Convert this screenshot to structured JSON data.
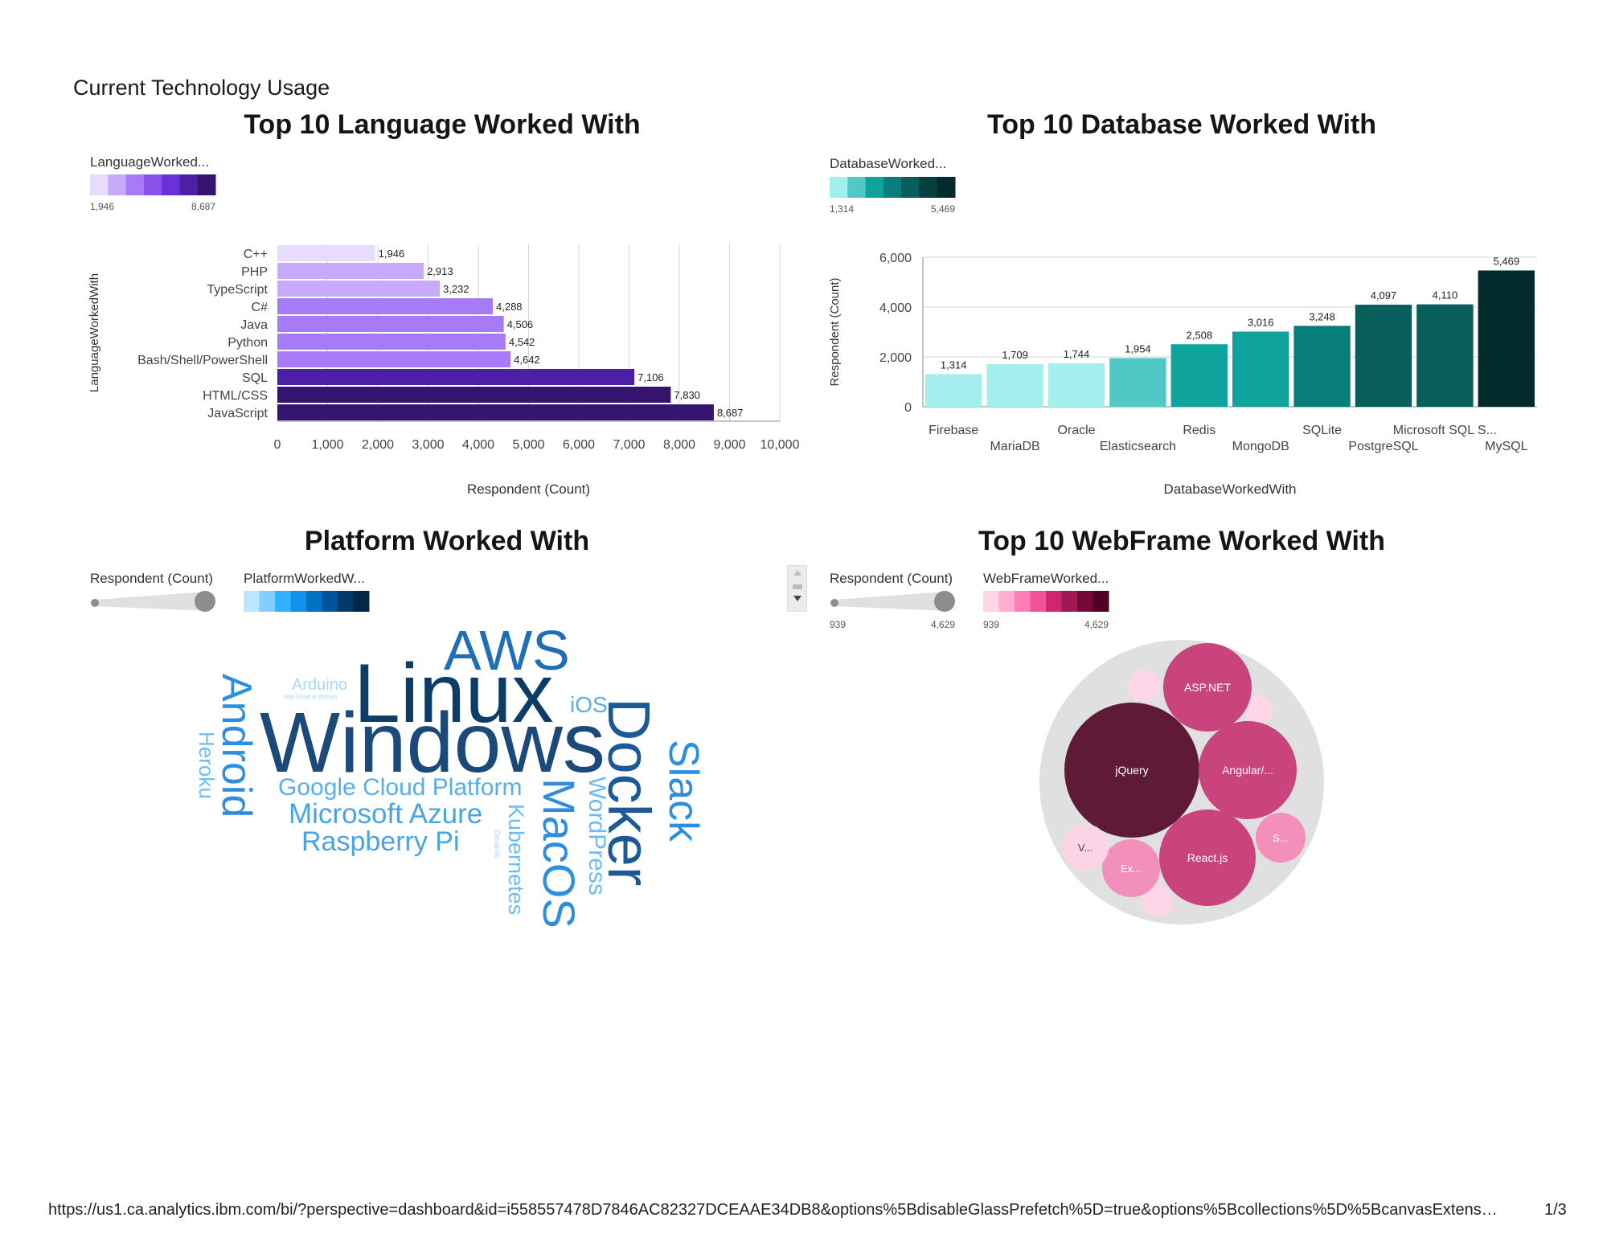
{
  "page": {
    "title": "Current Technology Usage",
    "url": "https://us1.ca.analytics.ibm.com/bi/?perspective=dashboard&id=i558557478D7846AC82327DCEAAE34DB8&options%5BdisableGlassPrefetch%5D=true&options%5Bcollections%5D%5BcanvasExtens…",
    "page_number": "1/3"
  },
  "colors": {
    "purple_scale": [
      "#e7dcfd",
      "#c7aafb",
      "#a77af7",
      "#8a52ec",
      "#6b31d6",
      "#4d1fa6",
      "#35146f"
    ],
    "teal_scale": [
      "#a4eeee",
      "#50c8c5",
      "#0ea39d",
      "#087e7a",
      "#075e5b",
      "#06403e",
      "#032b2c"
    ],
    "blue_scale": [
      "#bae6ff",
      "#82cfff",
      "#33b1ff",
      "#1192e8",
      "#0072c3",
      "#00539a",
      "#003a6d",
      "#012749"
    ],
    "pink_scale": [
      "#ffd6e8",
      "#ffafd2",
      "#ff7eb6",
      "#ee5396",
      "#d02670",
      "#9f1853",
      "#740937",
      "#510224"
    ]
  },
  "chart_data": [
    {
      "type": "bar",
      "orientation": "horizontal",
      "title": "Top 10 Language Worked With",
      "legend_title": "LanguageWorked...",
      "legend_min": "1,946",
      "legend_max": "8,687",
      "xlabel": "Respondent (Count)",
      "ylabel": "LanguageWorkedWith",
      "xlim": [
        0,
        10000
      ],
      "xticks": [
        "0",
        "1,000",
        "2,000",
        "3,000",
        "4,000",
        "5,000",
        "6,000",
        "7,000",
        "8,000",
        "9,000",
        "10,000"
      ],
      "categories": [
        "C++",
        "PHP",
        "TypeScript",
        "C#",
        "Java",
        "Python",
        "Bash/Shell/PowerShell",
        "SQL",
        "HTML/CSS",
        "JavaScript"
      ],
      "values": [
        1946,
        2913,
        3232,
        4288,
        4506,
        4542,
        4642,
        7106,
        7830,
        8687
      ],
      "value_labels": [
        "1,946",
        "2,913",
        "3,232",
        "4,288",
        "4,506",
        "4,542",
        "4,642",
        "7,106",
        "7,830",
        "8,687"
      ]
    },
    {
      "type": "bar",
      "orientation": "vertical",
      "title": "Top 10 Database Worked With",
      "legend_title": "DatabaseWorked...",
      "legend_min": "1,314",
      "legend_max": "5,469",
      "xlabel": "DatabaseWorkedWith",
      "ylabel": "Respondent (Count)",
      "ylim": [
        0,
        6000
      ],
      "yticks": [
        "0",
        "2,000",
        "4,000",
        "6,000"
      ],
      "categories": [
        "Firebase",
        "MariaDB",
        "Oracle",
        "Elasticsearch",
        "Redis",
        "MongoDB",
        "SQLite",
        "PostgreSQL",
        "Microsoft SQL S...",
        "MySQL"
      ],
      "values": [
        1314,
        1709,
        1744,
        1954,
        2508,
        3016,
        3248,
        4097,
        4110,
        5469
      ],
      "value_labels": [
        "1,314",
        "1,709",
        "1,744",
        "1,954",
        "2,508",
        "3,016",
        "3,248",
        "4,097",
        "4,110",
        "5,469"
      ]
    },
    {
      "type": "wordcloud",
      "title": "Platform Worked With",
      "size_legend_title": "Respondent (Count)",
      "color_legend_title": "PlatformWorkedW...",
      "words": [
        "Windows",
        "Linux",
        "Docker",
        "AWS",
        "Android",
        "MacOS",
        "Slack",
        "Microsoft Azure",
        "Google Cloud Platform",
        "Raspberry Pi",
        "Kubernetes",
        "WordPress",
        "Heroku",
        "iOS",
        "Arduino",
        "IBM Cloud or Watson",
        "Omarsk"
      ]
    },
    {
      "type": "bubble",
      "title": "Top 10 WebFrame Worked With",
      "size_legend_title": "Respondent (Count)",
      "size_min": "939",
      "size_max": "4,629",
      "color_legend_title": "WebFrameWorked...",
      "color_min": "939",
      "color_max": "4,629",
      "labels": [
        "jQuery",
        "ASP.NET",
        "Angular/...",
        "React.js",
        "S...",
        "Ex...",
        "V..."
      ]
    }
  ]
}
